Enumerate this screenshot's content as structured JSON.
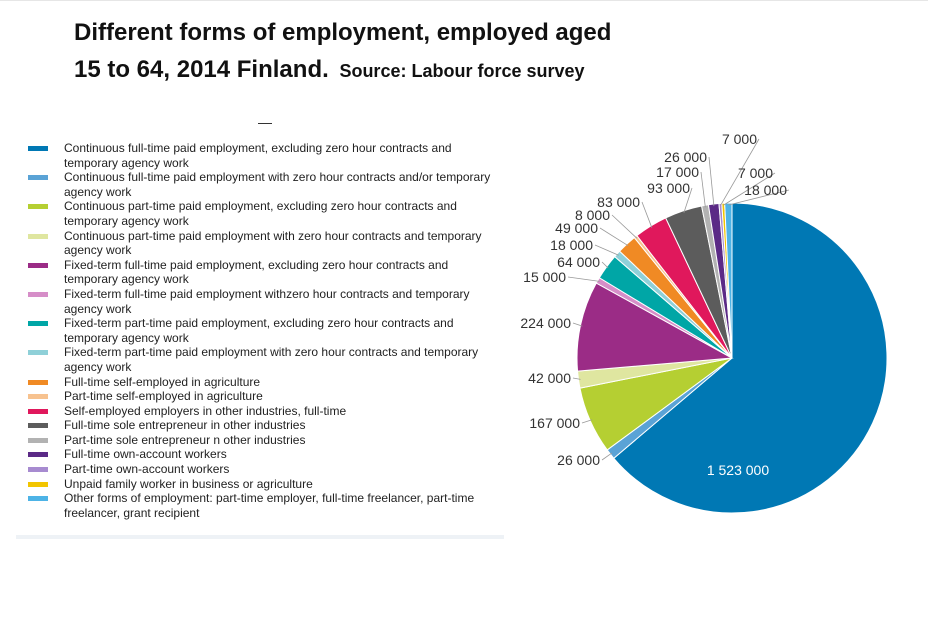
{
  "title_line1": "Different forms of employment, employed aged",
  "title_line2": "15 to 64, 2014 Finland.",
  "source": "Source: Labour force survey",
  "chart_data": {
    "type": "pie",
    "title": "Different forms of employment, employed aged 15 to 64, 2014 Finland.",
    "legend_placement": "left",
    "slices": [
      {
        "name": "Continuous full-time paid employment, excluding zero hour contracts and temporary agency work",
        "value": 1523000,
        "label": "1 523 000",
        "color": "#0078b4"
      },
      {
        "name": "Continuous full-time paid employment with zero hour contracts and/or temporary agency work",
        "value": 26000,
        "label": "26 000",
        "color": "#5aa3d6"
      },
      {
        "name": "Continuous part-time paid employment, excluding zero hour contracts and temporary agency work",
        "value": 167000,
        "label": "167 000",
        "color": "#b5cf32"
      },
      {
        "name": "Continuous part-time paid employment with zero hour contracts and temporary agency work",
        "value": 42000,
        "label": "42 000",
        "color": "#dfe6a0"
      },
      {
        "name": "Fixed-term full-time paid employment, excluding zero hour contracts and temporary agency work",
        "value": 224000,
        "label": "224 000",
        "color": "#9b2c86"
      },
      {
        "name": "Fixed-term full-time paid employment withzero hour contracts and temporary agency work",
        "value": 15000,
        "label": "15 000",
        "color": "#d68ec8"
      },
      {
        "name": "Fixed-term part-time paid employment, excluding zero hour contracts and temporary agency work",
        "value": 64000,
        "label": "64 000",
        "color": "#00a6a6"
      },
      {
        "name": "Fixed-term part-time paid employment with zero hour contracts and temporary agency work",
        "value": 18000,
        "label": "18 000",
        "color": "#8fd0d8"
      },
      {
        "name": "Full-time self-employed in agriculture",
        "value": 49000,
        "label": "49 000",
        "color": "#f08a24"
      },
      {
        "name": "Part-time self-employed in agriculture",
        "value": 8000,
        "label": "8 000",
        "color": "#f7c28f"
      },
      {
        "name": "Self-employed employers in other industries, full-time",
        "value": 83000,
        "label": "83 000",
        "color": "#e0185c"
      },
      {
        "name": "Full-time sole entrepreneur in other industries",
        "value": 93000,
        "label": "93 000",
        "color": "#5c5c5c"
      },
      {
        "name": "Part-time sole entrepreneur n other industries",
        "value": 17000,
        "label": "17 000",
        "color": "#b2b2b2"
      },
      {
        "name": "Full-time own-account workers",
        "value": 26000,
        "label": "26 000",
        "color": "#5b2a86"
      },
      {
        "name": "Part-time own-account workers",
        "value": 7000,
        "label": "7 000",
        "color": "#a78bd0"
      },
      {
        "name": "Unpaid family worker in business or agriculture",
        "value": 7000,
        "label": "7 000",
        "color": "#f2c500"
      },
      {
        "name": "Other forms of employment: part-time employer, full-time freelancer, part-time freelancer, grant recipient",
        "value": 18000,
        "label": "18 000",
        "color": "#4db3e6"
      }
    ]
  }
}
